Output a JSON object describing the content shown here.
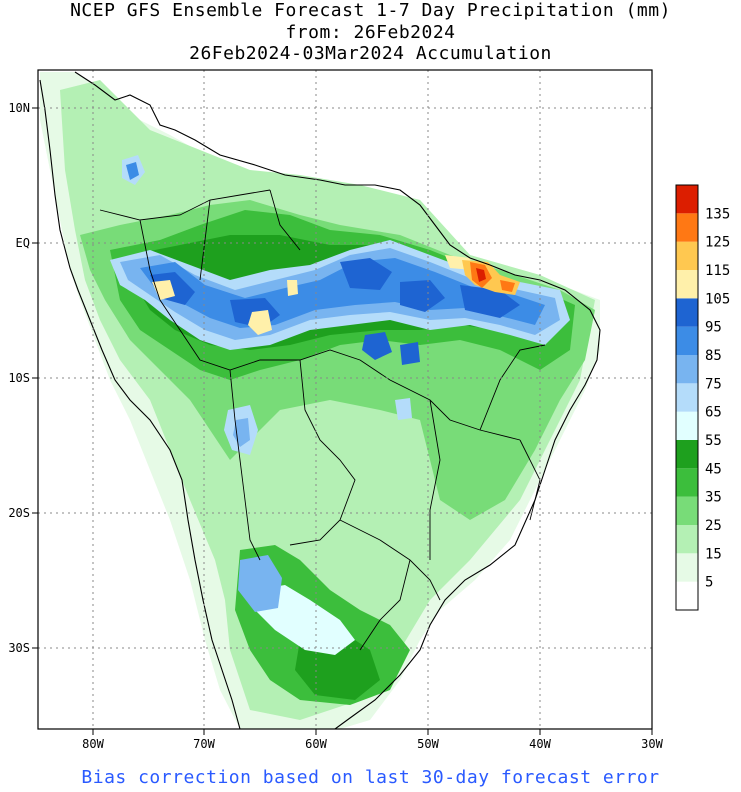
{
  "title": {
    "line1": "NCEP GFS Ensemble Forecast 1-7 Day Precipitation (mm)",
    "line2": "from: 26Feb2024",
    "line3": "26Feb2024-03Mar2024 Accumulation"
  },
  "axes": {
    "lon_labels": [
      "80W",
      "70W",
      "60W",
      "50W",
      "40W",
      "30W"
    ],
    "lat_labels": [
      "10N",
      "EQ",
      "10S",
      "20S",
      "30S"
    ]
  },
  "colorbar": {
    "labels": [
      "135",
      "125",
      "115",
      "105",
      "95",
      "85",
      "75",
      "65",
      "55",
      "45",
      "35",
      "25",
      "15",
      "5"
    ],
    "colors": [
      "#ffffff",
      "#e6fae6",
      "#b4f0b4",
      "#78dc78",
      "#3cbe3c",
      "#1ea01e",
      "#e1ffff",
      "#b4dcfa",
      "#78b4f0",
      "#3c8ce6",
      "#1e64d2",
      "#fff0aa",
      "#ffc850",
      "#ff7814",
      "#dc1e00"
    ]
  },
  "footer": "Bias correction based on last 30-day forecast error"
}
